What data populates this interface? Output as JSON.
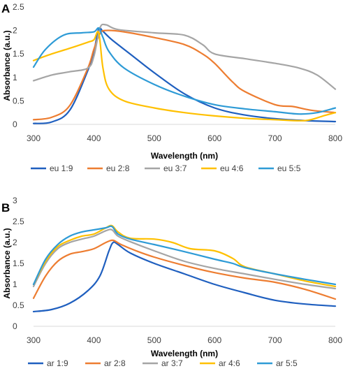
{
  "chart_data": [
    {
      "panel": "A",
      "type": "line",
      "xlabel": "Wavelength (nm)",
      "ylabel": "Absorbance (a.u.)",
      "xlim": [
        300,
        800
      ],
      "ylim": [
        0,
        2.5
      ],
      "xticks": [
        "300",
        "400",
        "500",
        "600",
        "700",
        "800"
      ],
      "yticks": [
        "0",
        "0.5",
        "1",
        "1.5",
        "2",
        "2.5"
      ],
      "grid": false,
      "legend": "bottom",
      "series": [
        {
          "name": "eu 1:9",
          "color": "#1f5fbf",
          "x": [
            300,
            330,
            360,
            390,
            400,
            408,
            415,
            430,
            460,
            500,
            550,
            600,
            650,
            700,
            750,
            800
          ],
          "y": [
            0.02,
            0.05,
            0.3,
            1.15,
            1.55,
            2.03,
            1.98,
            1.8,
            1.5,
            1.1,
            0.65,
            0.35,
            0.2,
            0.12,
            0.08,
            0.06
          ]
        },
        {
          "name": "eu 2:8",
          "color": "#ed7d31",
          "x": [
            300,
            330,
            360,
            390,
            400,
            410,
            420,
            450,
            500,
            550,
            580,
            600,
            630,
            650,
            700,
            730,
            760,
            800
          ],
          "y": [
            0.1,
            0.15,
            0.4,
            1.2,
            1.6,
            1.93,
            2.0,
            1.97,
            1.85,
            1.7,
            1.5,
            1.3,
            0.9,
            0.7,
            0.42,
            0.38,
            0.3,
            0.25
          ]
        },
        {
          "name": "eu 3:7",
          "color": "#a5a5a5",
          "x": [
            300,
            330,
            360,
            390,
            400,
            410,
            420,
            440,
            500,
            550,
            580,
            600,
            650,
            700,
            740,
            770,
            800
          ],
          "y": [
            0.93,
            1.05,
            1.12,
            1.2,
            1.45,
            2.05,
            2.12,
            2.02,
            1.95,
            1.9,
            1.7,
            1.5,
            1.4,
            1.3,
            1.2,
            1.05,
            0.75
          ]
        },
        {
          "name": "eu 4:6",
          "color": "#ffc000",
          "x": [
            300,
            330,
            360,
            390,
            400,
            408,
            415,
            425,
            450,
            500,
            550,
            600,
            650,
            700,
            750,
            780,
            800
          ],
          "y": [
            1.36,
            1.5,
            1.62,
            1.75,
            1.8,
            1.95,
            1.2,
            0.75,
            0.5,
            0.35,
            0.25,
            0.18,
            0.13,
            0.1,
            0.08,
            0.18,
            0.25
          ]
        },
        {
          "name": "eu 5:5",
          "color": "#2e9bd6",
          "x": [
            300,
            320,
            350,
            380,
            400,
            408,
            415,
            425,
            450,
            500,
            550,
            600,
            650,
            700,
            740,
            770,
            800
          ],
          "y": [
            1.22,
            1.6,
            1.9,
            1.95,
            1.97,
            2.05,
            1.85,
            1.55,
            1.2,
            0.85,
            0.6,
            0.42,
            0.33,
            0.27,
            0.22,
            0.25,
            0.35
          ]
        }
      ]
    },
    {
      "panel": "B",
      "type": "line",
      "xlabel": "Wavelength (nm)",
      "ylabel": "Absorbance (a.u.)",
      "xlim": [
        300,
        800
      ],
      "ylim": [
        0,
        3
      ],
      "xticks": [
        "300",
        "400",
        "500",
        "600",
        "700",
        "800"
      ],
      "yticks": [
        "0",
        "0.5",
        "1",
        "1.5",
        "2",
        "2.5",
        "3"
      ],
      "grid": false,
      "legend": "bottom",
      "series": [
        {
          "name": "ar 1:9",
          "color": "#1f5fbf",
          "x": [
            300,
            330,
            360,
            390,
            410,
            425,
            432,
            440,
            460,
            500,
            550,
            600,
            650,
            700,
            750,
            800
          ],
          "y": [
            0.35,
            0.4,
            0.55,
            0.85,
            1.2,
            1.8,
            2.0,
            1.95,
            1.75,
            1.5,
            1.25,
            1.0,
            0.8,
            0.62,
            0.53,
            0.48
          ]
        },
        {
          "name": "ar 2:8",
          "color": "#ed7d31",
          "x": [
            300,
            320,
            340,
            360,
            380,
            400,
            420,
            432,
            445,
            470,
            500,
            550,
            600,
            650,
            700,
            750,
            800
          ],
          "y": [
            0.67,
            1.2,
            1.55,
            1.72,
            1.78,
            1.85,
            2.0,
            2.05,
            1.95,
            1.8,
            1.65,
            1.45,
            1.28,
            1.15,
            1.05,
            0.88,
            0.65
          ]
        },
        {
          "name": "ar 3:7",
          "color": "#a5a5a5",
          "x": [
            300,
            320,
            340,
            360,
            380,
            400,
            420,
            430,
            440,
            460,
            500,
            550,
            600,
            650,
            700,
            750,
            800
          ],
          "y": [
            0.95,
            1.5,
            1.85,
            2.0,
            2.08,
            2.15,
            2.28,
            2.3,
            2.15,
            2.02,
            1.8,
            1.55,
            1.38,
            1.25,
            1.12,
            1.0,
            0.9
          ]
        },
        {
          "name": "ar 4:6",
          "color": "#ffc000",
          "x": [
            300,
            320,
            340,
            360,
            380,
            400,
            420,
            430,
            440,
            460,
            500,
            530,
            560,
            600,
            630,
            650,
            700,
            750,
            800
          ],
          "y": [
            1.0,
            1.55,
            1.9,
            2.05,
            2.15,
            2.2,
            2.35,
            2.4,
            2.25,
            2.1,
            2.08,
            2.0,
            1.85,
            1.8,
            1.62,
            1.42,
            1.25,
            1.08,
            0.95
          ]
        },
        {
          "name": "ar 5:5",
          "color": "#2e9bd6",
          "x": [
            300,
            320,
            340,
            360,
            380,
            400,
            420,
            430,
            440,
            460,
            500,
            550,
            600,
            630,
            650,
            700,
            750,
            800
          ],
          "y": [
            1.0,
            1.6,
            1.95,
            2.15,
            2.25,
            2.3,
            2.35,
            2.38,
            2.2,
            2.08,
            1.95,
            1.78,
            1.6,
            1.5,
            1.4,
            1.25,
            1.12,
            1.0
          ]
        }
      ]
    }
  ]
}
